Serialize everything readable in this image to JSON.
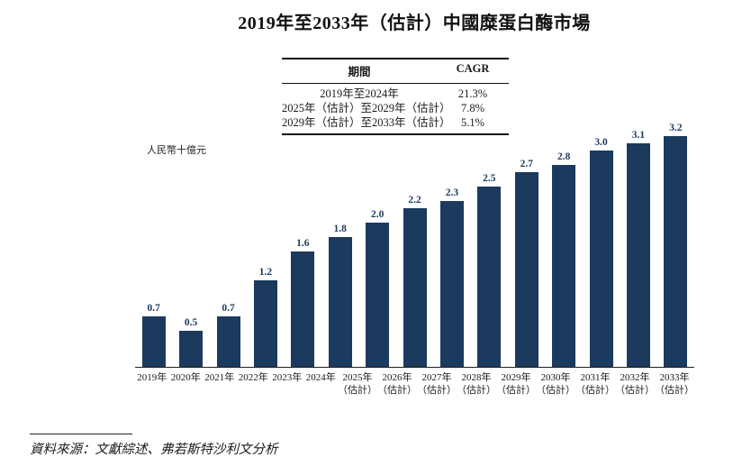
{
  "page": {
    "title": "2019年至2033年（估計）中國糜蛋白酶市場",
    "source_note": "資料來源：文獻綜述、弗若斯特沙利文分析"
  },
  "cagr_table": {
    "period_header": "期間",
    "cagr_header": "CAGR",
    "rows": [
      {
        "period": "2019年至2024年",
        "cagr": "21.3%"
      },
      {
        "period": "2025年（估計）至2029年（估計）",
        "cagr": "7.8%"
      },
      {
        "period": "2029年（估計）至2033年（估計）",
        "cagr": "5.1%"
      }
    ]
  },
  "chart_data": {
    "type": "bar",
    "title": "2019年至2033年（估計）中國糜蛋白酶市場",
    "ylabel": "人民幣十億元",
    "xlabel": "",
    "categories": [
      {
        "year": "2019年",
        "note": ""
      },
      {
        "year": "2020年",
        "note": ""
      },
      {
        "year": "2021年",
        "note": ""
      },
      {
        "year": "2022年",
        "note": ""
      },
      {
        "year": "2023年",
        "note": ""
      },
      {
        "year": "2024年",
        "note": ""
      },
      {
        "year": "2025年",
        "note": "（估計）"
      },
      {
        "year": "2026年",
        "note": "（估計）"
      },
      {
        "year": "2027年",
        "note": "（估計）"
      },
      {
        "year": "2028年",
        "note": "（估計）"
      },
      {
        "year": "2029年",
        "note": "（估計）"
      },
      {
        "year": "2030年",
        "note": "（估計）"
      },
      {
        "year": "2031年",
        "note": "（估計）"
      },
      {
        "year": "2032年",
        "note": "（估計）"
      },
      {
        "year": "2033年",
        "note": "（估計）"
      }
    ],
    "values": [
      0.7,
      0.5,
      0.7,
      1.2,
      1.6,
      1.8,
      2.0,
      2.2,
      2.3,
      2.5,
      2.7,
      2.8,
      3.0,
      3.1,
      3.2
    ],
    "value_labels": [
      "0.7",
      "0.5",
      "0.7",
      "1.2",
      "1.6",
      "1.8",
      "2.0",
      "2.2",
      "2.3",
      "2.5",
      "2.7",
      "2.8",
      "3.0",
      "3.1",
      "3.2"
    ],
    "ylim": [
      0,
      3.4
    ],
    "bar_color": "#1b3a5e",
    "grid": false,
    "legend_position": "none"
  }
}
